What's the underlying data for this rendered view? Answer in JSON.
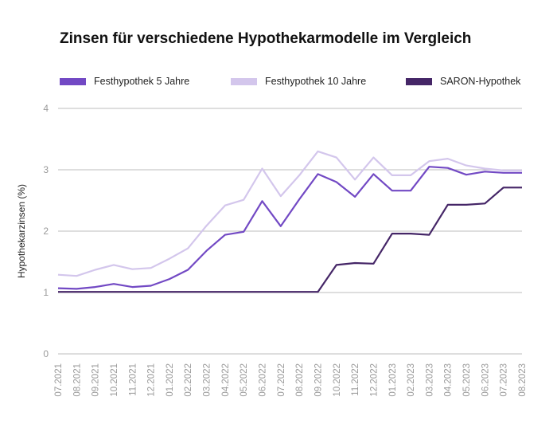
{
  "chart_data": {
    "type": "line",
    "title": "Zinsen für verschiedene Hypothekarmodelle im Vergleich",
    "ylabel": "Hypothekarzinsen (%)",
    "xlabel": "",
    "ylim": [
      0,
      4
    ],
    "yticks": [
      "0",
      "1",
      "2",
      "3",
      "4"
    ],
    "grid": "horizontal",
    "legend_position": "top",
    "x": [
      "07.2021",
      "08.2021",
      "09.2021",
      "10.2021",
      "11.2021",
      "12.2021",
      "01.2022",
      "02.2022",
      "03.2022",
      "04.2022",
      "05.2022",
      "06.2022",
      "07.2022",
      "08.2022",
      "09.2022",
      "10.2022",
      "11.2022",
      "12.2022",
      "01.2023",
      "02.2023",
      "03.2023",
      "04.2023",
      "05.2023",
      "06.2023",
      "07.2023",
      "08.2023"
    ],
    "series": [
      {
        "name": "Festhypothek 5 Jahre",
        "color": "#7249c4",
        "values": [
          1.07,
          1.06,
          1.09,
          1.14,
          1.09,
          1.11,
          1.22,
          1.37,
          1.68,
          1.94,
          1.99,
          2.49,
          2.08,
          2.52,
          2.93,
          2.8,
          2.56,
          2.93,
          2.66,
          2.66,
          3.05,
          3.03,
          2.92,
          2.97,
          2.95,
          2.95
        ]
      },
      {
        "name": "Festhypothek 10 Jahre",
        "color": "#d3c6ec",
        "values": [
          1.29,
          1.27,
          1.37,
          1.45,
          1.38,
          1.4,
          1.55,
          1.72,
          2.09,
          2.42,
          2.51,
          3.02,
          2.57,
          2.91,
          3.3,
          3.2,
          2.84,
          3.2,
          2.91,
          2.91,
          3.14,
          3.18,
          3.07,
          3.02,
          2.99,
          2.99
        ]
      },
      {
        "name": "SARON-Hypothek",
        "color": "#452667",
        "values": [
          1.01,
          1.01,
          1.01,
          1.01,
          1.01,
          1.01,
          1.01,
          1.01,
          1.01,
          1.01,
          1.01,
          1.01,
          1.01,
          1.01,
          1.01,
          1.45,
          1.48,
          1.47,
          1.96,
          1.96,
          1.94,
          2.43,
          2.43,
          2.45,
          2.71,
          2.71
        ]
      }
    ]
  }
}
